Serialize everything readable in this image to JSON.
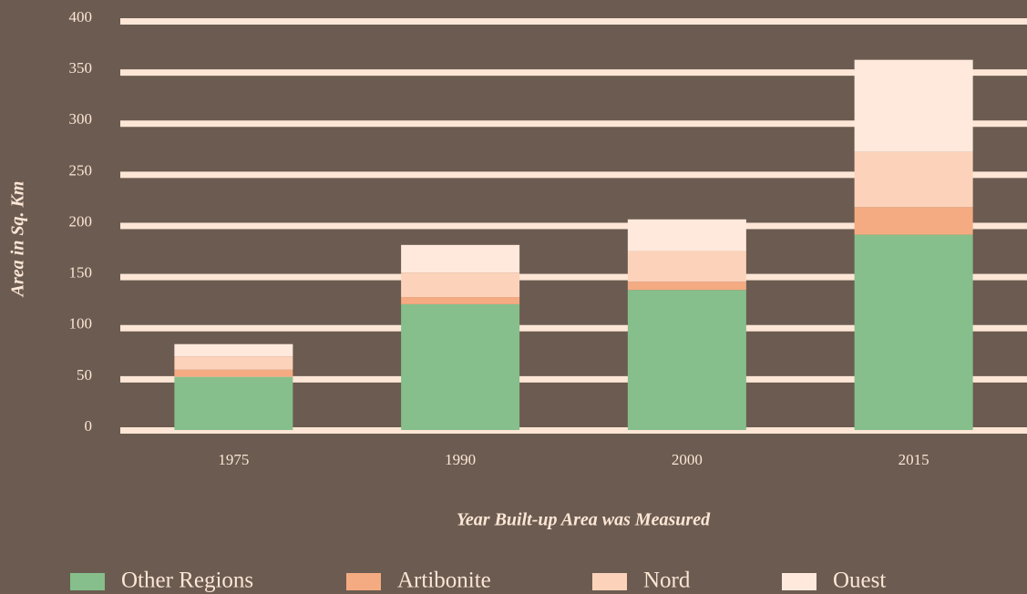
{
  "chart_data": {
    "type": "stacked_bar",
    "ylabel": "Area in Sq. Km",
    "xlabel": "Year Built-up Area was Measured",
    "categories": [
      "1975",
      "1990",
      "2000",
      "2015"
    ],
    "series": [
      {
        "name": "Other Regions",
        "color": "#86bf8b",
        "values": [
          52,
          123,
          137,
          191
        ]
      },
      {
        "name": "Artibonite",
        "color": "#f5ab82",
        "values": [
          7,
          7,
          8,
          27
        ]
      },
      {
        "name": "Nord",
        "color": "#fcd3ba",
        "values": [
          13,
          24,
          30,
          54
        ]
      },
      {
        "name": "Ouest",
        "color": "#ffe9dc",
        "values": [
          12,
          27,
          31,
          90
        ]
      }
    ],
    "ylim": [
      0,
      400
    ],
    "yticks": [
      0,
      50,
      100,
      150,
      200,
      250,
      300,
      350,
      400
    ],
    "grid": true
  }
}
